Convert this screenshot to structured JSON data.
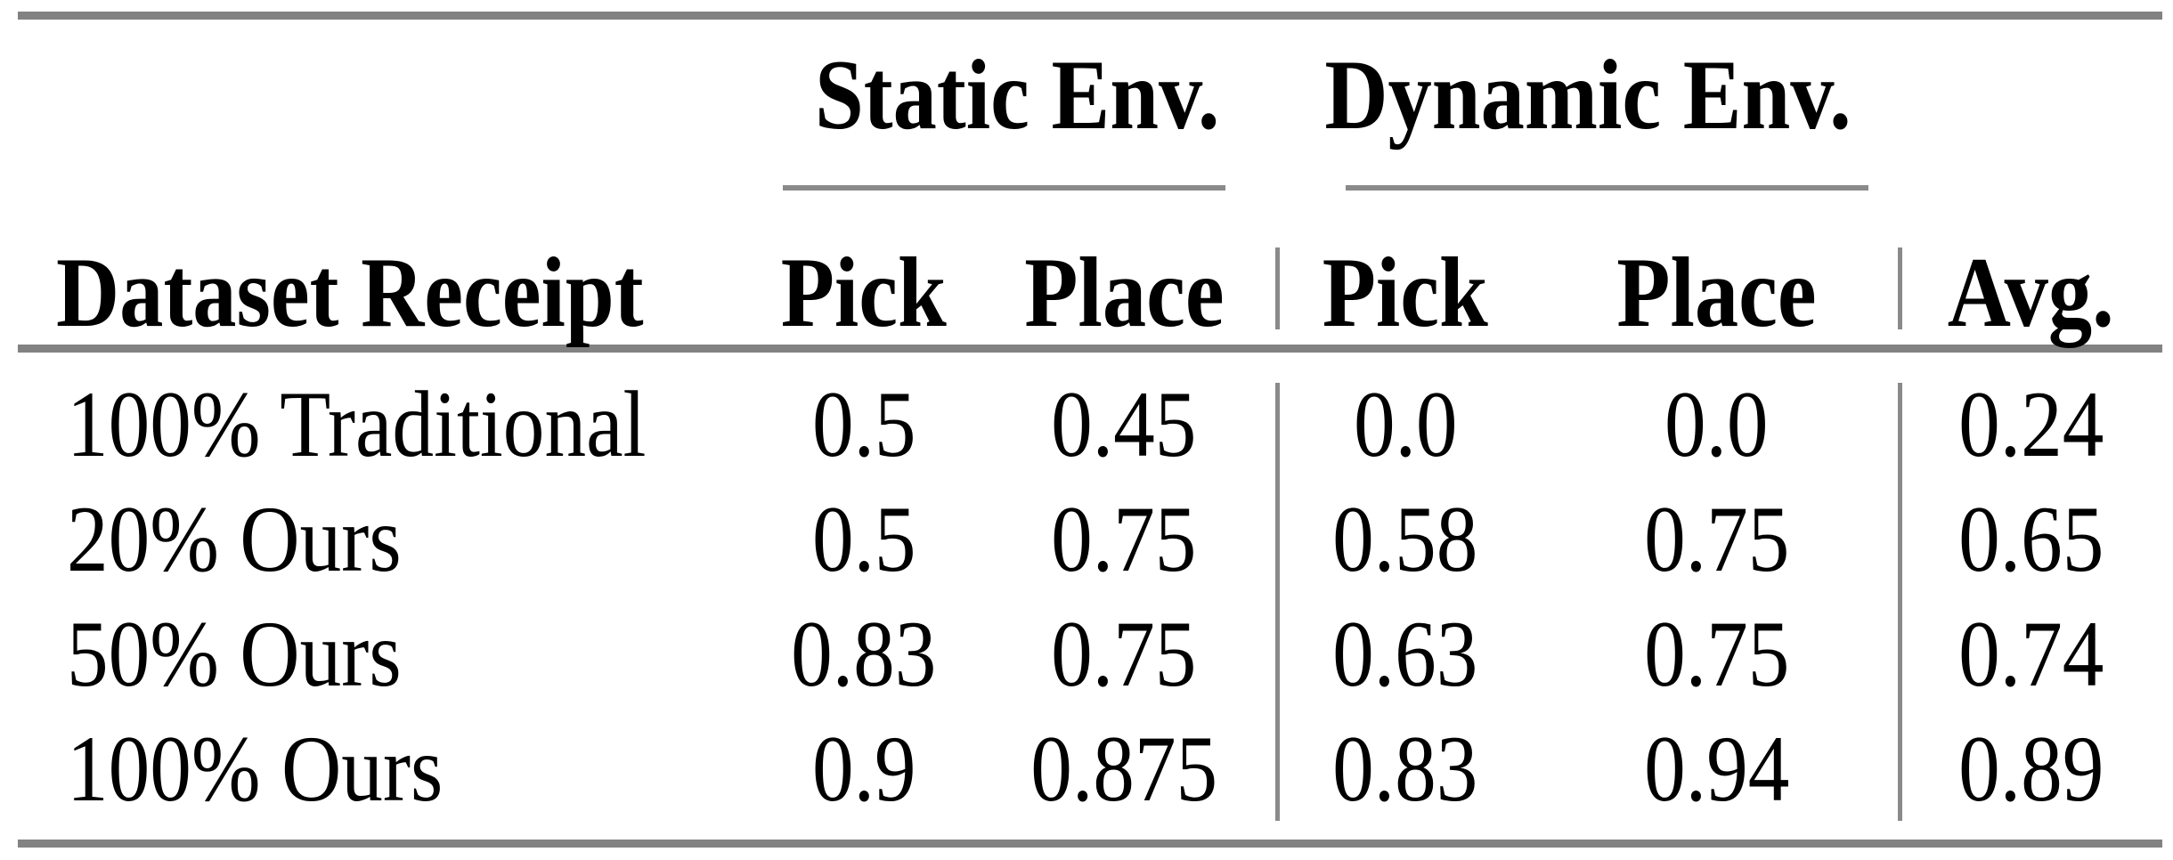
{
  "table": {
    "groups": [
      {
        "label": "Static Env."
      },
      {
        "label": "Dynamic Env."
      }
    ],
    "columns": [
      "Dataset Receipt",
      "Pick",
      "Place",
      "Pick",
      "Place",
      "Avg."
    ],
    "rows": [
      [
        "100% Traditional",
        "0.5",
        "0.45",
        "0.0",
        "0.0",
        "0.24"
      ],
      [
        "20% Ours",
        "0.5",
        "0.75",
        "0.58",
        "0.75",
        "0.65"
      ],
      [
        "50% Ours",
        "0.83",
        "0.75",
        "0.63",
        "0.75",
        "0.74"
      ],
      [
        "100% Ours",
        "0.9",
        "0.875",
        "0.83",
        "0.94",
        "0.89"
      ]
    ],
    "colors": {
      "rule_thick": "#828282",
      "rule_thin": "#8a8a8a",
      "text": "#000000",
      "background": "#ffffff"
    }
  }
}
